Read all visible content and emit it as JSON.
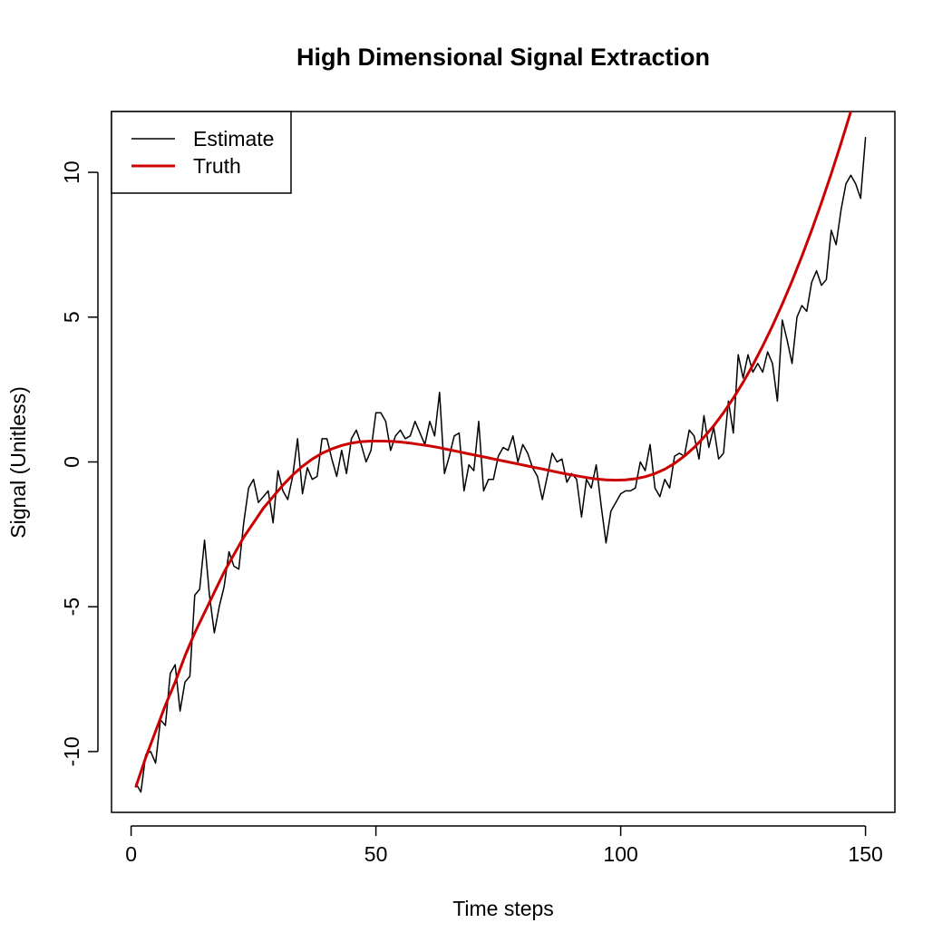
{
  "chart_data": {
    "type": "line",
    "title": "High Dimensional Signal Extraction",
    "xlabel": "Time steps",
    "ylabel": "Signal (Unitless)",
    "xlim": [
      -4,
      156
    ],
    "ylim": [
      -12.1,
      12.1
    ],
    "x_ticks": [
      0,
      50,
      100,
      150
    ],
    "y_ticks": [
      -10,
      -5,
      0,
      5,
      10
    ],
    "grid": false,
    "legend_position": "top-left",
    "legend": [
      {
        "label": "Estimate",
        "color": "#000000"
      },
      {
        "label": "Truth",
        "color": "#cc0000"
      }
    ],
    "series": [
      {
        "name": "Estimate",
        "color": "#000000",
        "x": [
          1,
          2,
          3,
          4,
          5,
          6,
          7,
          8,
          9,
          10,
          11,
          12,
          13,
          14,
          15,
          16,
          17,
          18,
          19,
          20,
          21,
          22,
          23,
          24,
          25,
          26,
          27,
          28,
          29,
          30,
          31,
          32,
          33,
          34,
          35,
          36,
          37,
          38,
          39,
          40,
          41,
          42,
          43,
          44,
          45,
          46,
          47,
          48,
          49,
          50,
          51,
          52,
          53,
          54,
          55,
          56,
          57,
          58,
          59,
          60,
          61,
          62,
          63,
          64,
          65,
          66,
          67,
          68,
          69,
          70,
          71,
          72,
          73,
          74,
          75,
          76,
          77,
          78,
          79,
          80,
          81,
          82,
          83,
          84,
          85,
          86,
          87,
          88,
          89,
          90,
          91,
          92,
          93,
          94,
          95,
          96,
          97,
          98,
          99,
          100,
          101,
          102,
          103,
          104,
          105,
          106,
          107,
          108,
          109,
          110,
          111,
          112,
          113,
          114,
          115,
          116,
          117,
          118,
          119,
          120,
          121,
          122,
          123,
          124,
          125,
          126,
          127,
          128,
          129,
          130,
          131,
          132,
          133,
          134,
          135,
          136,
          137,
          138,
          139,
          140,
          141,
          142,
          143,
          144,
          145,
          146,
          147,
          148,
          149,
          150
        ],
        "values": [
          -11.1,
          -11.4,
          -10.1,
          -10.0,
          -10.4,
          -8.9,
          -9.1,
          -7.3,
          -7.0,
          -8.6,
          -7.6,
          -7.4,
          -4.6,
          -4.4,
          -2.7,
          -4.6,
          -5.9,
          -5.0,
          -4.3,
          -3.1,
          -3.6,
          -3.7,
          -2.1,
          -0.9,
          -0.6,
          -1.4,
          -1.2,
          -1.0,
          -2.1,
          -0.3,
          -1.0,
          -1.3,
          -0.5,
          0.8,
          -1.1,
          -0.2,
          -0.6,
          -0.5,
          0.8,
          0.8,
          0.1,
          -0.5,
          0.4,
          -0.4,
          0.8,
          1.1,
          0.6,
          0.0,
          0.4,
          1.7,
          1.7,
          1.4,
          0.4,
          0.9,
          1.1,
          0.8,
          0.9,
          1.4,
          1.0,
          0.6,
          1.4,
          0.9,
          2.4,
          -0.4,
          0.2,
          0.9,
          1.0,
          -1.0,
          -0.1,
          -0.3,
          1.4,
          -1.0,
          -0.6,
          -0.6,
          0.2,
          0.5,
          0.4,
          0.9,
          0.0,
          0.6,
          0.3,
          -0.2,
          -0.5,
          -1.3,
          -0.5,
          0.3,
          0.0,
          0.1,
          -0.7,
          -0.4,
          -0.6,
          -1.9,
          -0.6,
          -0.9,
          -0.1,
          -1.5,
          -2.8,
          -1.7,
          -1.4,
          -1.1,
          -1.0,
          -1.0,
          -0.9,
          0.0,
          -0.3,
          0.6,
          -0.9,
          -1.2,
          -0.6,
          -0.9,
          0.2,
          0.3,
          0.2,
          1.1,
          0.9,
          0.1,
          1.6,
          0.5,
          1.2,
          0.1,
          0.3,
          2.1,
          1.0,
          3.7,
          2.9,
          3.7,
          3.1,
          3.4,
          3.1,
          3.8,
          3.4,
          2.1,
          4.9,
          4.2,
          3.4,
          5.0,
          5.4,
          5.2,
          6.2,
          6.6,
          6.1,
          6.3,
          8.0,
          7.5,
          8.7,
          9.6,
          9.9,
          9.6,
          9.1,
          11.2
        ]
      },
      {
        "name": "Truth",
        "color": "#cc0000",
        "x": [
          1,
          3,
          5,
          7,
          9,
          11,
          13,
          15,
          17,
          19,
          21,
          23,
          25,
          27,
          29,
          31,
          33,
          35,
          37,
          39,
          41,
          43,
          45,
          47,
          49,
          51,
          53,
          55,
          57,
          59,
          61,
          63,
          65,
          67,
          69,
          71,
          73,
          75,
          77,
          79,
          81,
          83,
          85,
          87,
          89,
          91,
          93,
          95,
          97,
          99,
          101,
          103,
          105,
          107,
          109,
          111,
          113,
          115,
          117,
          119,
          121,
          123,
          125,
          127,
          129,
          131,
          133,
          135,
          137,
          139,
          141,
          143,
          145,
          147,
          149,
          150
        ],
        "values": [
          -11.2,
          -10.2,
          -9.3,
          -8.4,
          -7.6,
          -6.7,
          -5.9,
          -5.2,
          -4.5,
          -3.8,
          -3.2,
          -2.6,
          -2.1,
          -1.6,
          -1.2,
          -0.8,
          -0.45,
          -0.15,
          0.1,
          0.3,
          0.45,
          0.57,
          0.65,
          0.7,
          0.72,
          0.72,
          0.71,
          0.69,
          0.65,
          0.6,
          0.55,
          0.49,
          0.42,
          0.35,
          0.28,
          0.21,
          0.14,
          0.07,
          0.0,
          -0.07,
          -0.14,
          -0.21,
          -0.28,
          -0.35,
          -0.42,
          -0.48,
          -0.54,
          -0.59,
          -0.62,
          -0.63,
          -0.62,
          -0.58,
          -0.51,
          -0.4,
          -0.25,
          -0.05,
          0.2,
          0.5,
          0.85,
          1.25,
          1.7,
          2.2,
          2.75,
          3.35,
          4.0,
          4.7,
          5.45,
          6.25,
          7.1,
          8.0,
          8.95,
          9.95,
          11.0,
          12.1,
          13.25,
          13.8
        ]
      }
    ]
  }
}
